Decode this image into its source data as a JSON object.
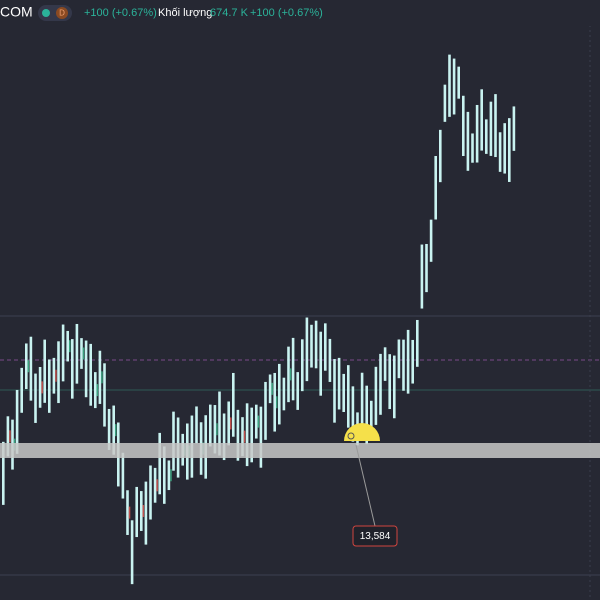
{
  "header": {
    "ticker": "COM",
    "interval": "D",
    "change": "+100 (+0.67%)",
    "volume_label": "Khối lượng",
    "volume": "674.7 K",
    "volume_change": "+100 (+0.67%)"
  },
  "price_label": "13,584"
}
